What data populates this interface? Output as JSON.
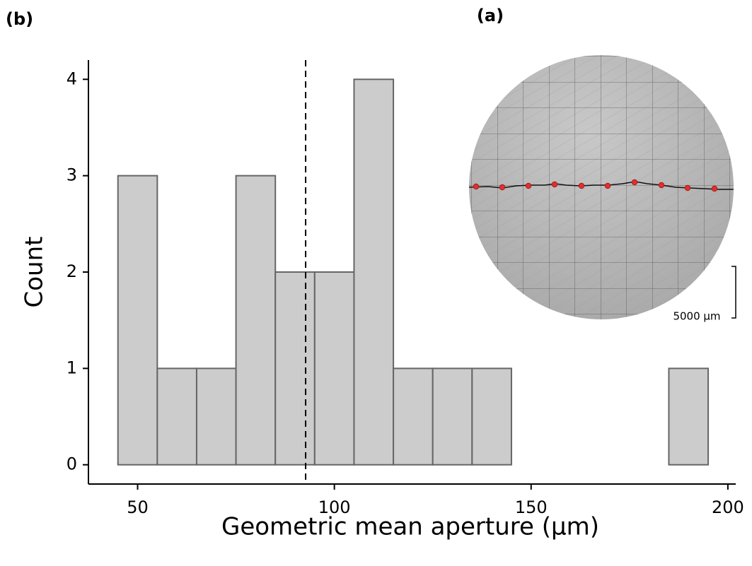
{
  "chart_data": {
    "type": "histogram",
    "panel_label": "(b)",
    "inset_label": "(a)",
    "scale_label": "5000 μm",
    "xlabel": "Geometric mean aperture (μm)",
    "ylabel": "Count",
    "bins": [
      45,
      55,
      65,
      75,
      85,
      95,
      105,
      115,
      125,
      135,
      145,
      155,
      165,
      175,
      185,
      195
    ],
    "counts": [
      3,
      1,
      1,
      3,
      2,
      2,
      4,
      1,
      1,
      1,
      0,
      0,
      0,
      0,
      1
    ],
    "color": "#cccccc",
    "edge_color": "#666666",
    "reference_x": 92.7,
    "xlim": [
      37.5,
      202
    ],
    "xticks": [
      50,
      100,
      150,
      200
    ],
    "ylim": [
      -0.2,
      4.2
    ],
    "yticks": [
      0,
      1,
      2,
      3,
      4
    ]
  }
}
